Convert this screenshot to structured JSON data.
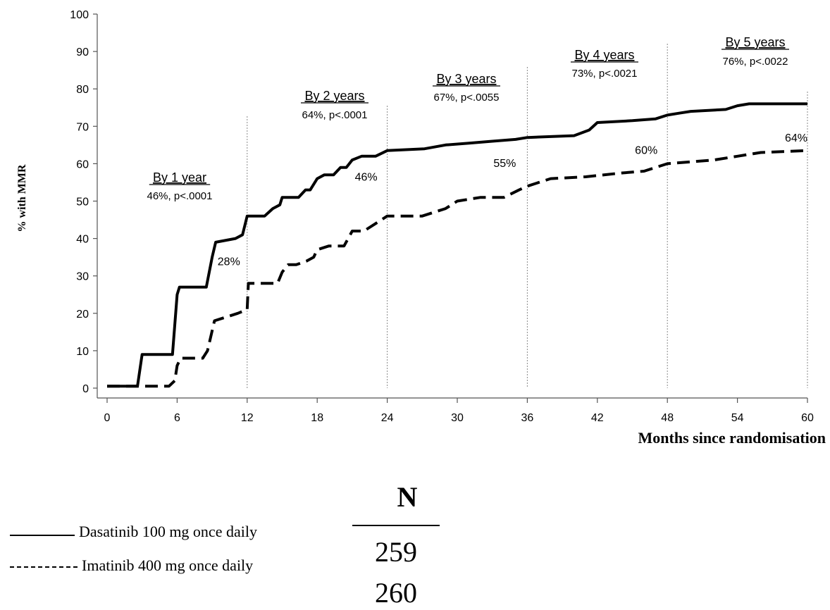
{
  "chart_data": {
    "type": "line",
    "title": "",
    "xlabel": "Months since randomisation",
    "ylabel": "% with MMR",
    "xlim": [
      0,
      60
    ],
    "ylim": [
      0,
      100
    ],
    "xticks": [
      0,
      6,
      12,
      18,
      24,
      30,
      36,
      42,
      48,
      54,
      60
    ],
    "yticks": [
      0,
      10,
      20,
      30,
      40,
      50,
      60,
      70,
      80,
      90,
      100
    ],
    "grid": false,
    "vlines": [
      12,
      24,
      36,
      48,
      60
    ],
    "series": [
      {
        "name": "Dasatinib 100 mg once daily",
        "style": "solid",
        "points": [
          [
            0,
            0.5
          ],
          [
            2.6,
            0.5
          ],
          [
            3,
            9
          ],
          [
            5.6,
            9
          ],
          [
            6,
            25
          ],
          [
            6.2,
            27
          ],
          [
            8.5,
            27
          ],
          [
            9,
            35
          ],
          [
            9.3,
            39
          ],
          [
            11,
            40
          ],
          [
            11.6,
            41
          ],
          [
            12,
            46
          ],
          [
            13.5,
            46
          ],
          [
            14.2,
            48
          ],
          [
            14.8,
            49
          ],
          [
            15,
            51
          ],
          [
            16.4,
            51
          ],
          [
            17,
            53
          ],
          [
            17.4,
            53
          ],
          [
            18,
            56
          ],
          [
            18.6,
            57
          ],
          [
            19.4,
            57
          ],
          [
            20,
            59
          ],
          [
            20.5,
            59
          ],
          [
            21,
            61
          ],
          [
            21.8,
            62
          ],
          [
            23,
            62
          ],
          [
            24,
            63.5
          ],
          [
            27.2,
            64
          ],
          [
            29,
            65
          ],
          [
            31,
            65.5
          ],
          [
            33,
            66
          ],
          [
            35,
            66.5
          ],
          [
            36,
            67
          ],
          [
            40,
            67.5
          ],
          [
            41.3,
            69
          ],
          [
            42,
            71
          ],
          [
            45,
            71.5
          ],
          [
            47,
            72
          ],
          [
            48,
            73
          ],
          [
            49,
            73.5
          ],
          [
            50,
            74
          ],
          [
            53,
            74.5
          ],
          [
            54,
            75.5
          ],
          [
            55,
            76
          ],
          [
            58.5,
            76
          ],
          [
            60,
            76
          ]
        ]
      },
      {
        "name": "Imatinib 400 mg once daily",
        "style": "dashed",
        "points": [
          [
            0,
            0.5
          ],
          [
            5.3,
            0.5
          ],
          [
            5.8,
            2
          ],
          [
            6,
            6
          ],
          [
            6.3,
            8
          ],
          [
            8.2,
            8
          ],
          [
            8.6,
            10
          ],
          [
            9.2,
            18
          ],
          [
            11.2,
            20
          ],
          [
            12,
            21
          ],
          [
            12.1,
            28
          ],
          [
            14.6,
            28
          ],
          [
            15,
            31
          ],
          [
            15.5,
            33
          ],
          [
            16.2,
            33
          ],
          [
            17.1,
            34
          ],
          [
            17.7,
            35
          ],
          [
            18,
            37
          ],
          [
            19,
            38
          ],
          [
            20.3,
            38
          ],
          [
            21,
            42
          ],
          [
            22,
            42
          ],
          [
            23,
            44
          ],
          [
            24,
            46
          ],
          [
            27,
            46
          ],
          [
            29,
            48
          ],
          [
            30,
            50
          ],
          [
            32,
            51
          ],
          [
            34,
            51
          ],
          [
            35.3,
            53
          ],
          [
            36,
            54
          ],
          [
            37,
            55
          ],
          [
            38,
            56
          ],
          [
            41,
            56.5
          ],
          [
            44,
            57.5
          ],
          [
            46,
            58
          ],
          [
            47,
            59
          ],
          [
            48,
            60
          ],
          [
            52,
            61
          ],
          [
            54,
            62
          ],
          [
            56,
            63
          ],
          [
            60,
            63.5
          ]
        ]
      }
    ],
    "annotations": [
      {
        "heading": "By 1 year",
        "text": "46%, p<.0001"
      },
      {
        "heading": "By 2 years",
        "text": "64%, p<.0001"
      },
      {
        "heading": "By 3 years",
        "text": "67%, p<.0055"
      },
      {
        "heading": "By 4 years",
        "text": "73%, p<.0021"
      },
      {
        "heading": "By 5 years",
        "text": "76%, p<.0022"
      }
    ],
    "imatinib_labels": [
      {
        "x": 12,
        "y": 28,
        "text": "28%"
      },
      {
        "x": 24,
        "y": 46,
        "text": "46%"
      },
      {
        "x": 36,
        "y": 55,
        "text": "55%"
      },
      {
        "x": 48,
        "y": 60,
        "text": "60%"
      },
      {
        "x": 60,
        "y": 64,
        "text": "64%"
      }
    ]
  },
  "legend": {
    "items": [
      {
        "label": "Dasatinib 100 mg once daily",
        "n": "259"
      },
      {
        "label": "Imatinib 400 mg once daily",
        "n": "260"
      }
    ],
    "n_header": "N"
  }
}
